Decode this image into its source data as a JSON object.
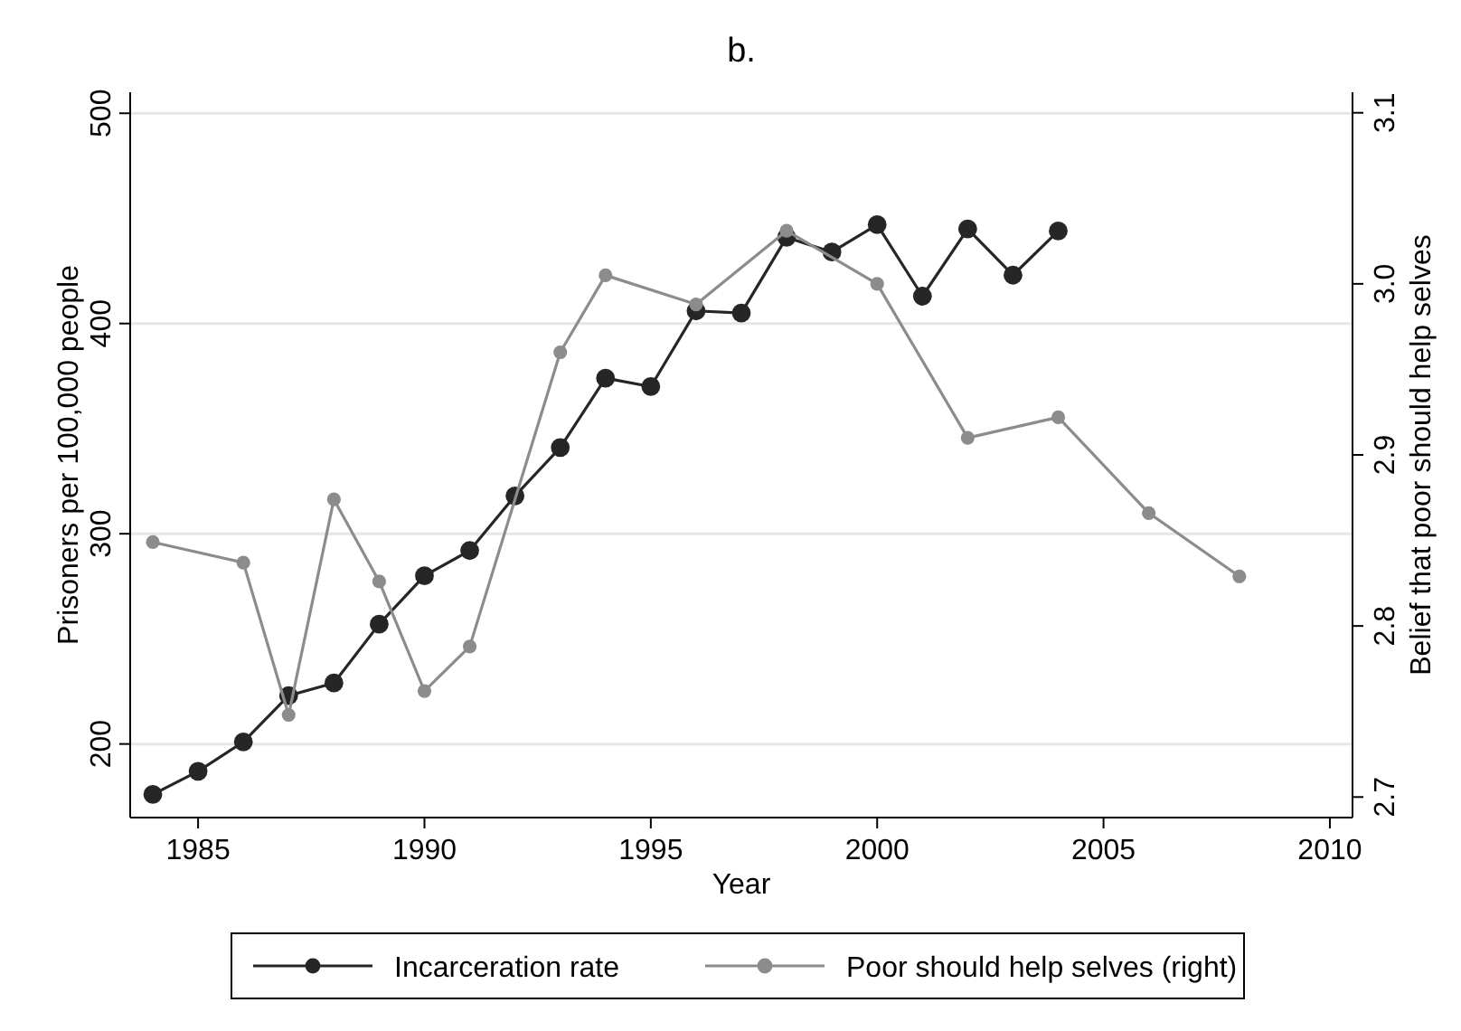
{
  "chart_data": {
    "type": "line",
    "title": "b.",
    "xlabel": "Year",
    "ylabel": "Prisoners per 100,000 people",
    "y2label": "Belief that poor should help selves",
    "xlim": [
      1983.5,
      2010.5
    ],
    "xticks": [
      1985,
      1990,
      1995,
      2000,
      2005,
      2010
    ],
    "ylim": [
      165,
      510
    ],
    "yticks": [
      200,
      300,
      400,
      500
    ],
    "y2lim": [
      2.688,
      3.112
    ],
    "y2ticks": [
      {
        "value": 2.7,
        "label": "2.7"
      },
      {
        "value": 2.8,
        "label": "2.8"
      },
      {
        "value": 2.9,
        "label": "2.9"
      },
      {
        "value": 3.0,
        "label": "3.0"
      },
      {
        "value": 3.1,
        "label": "3.1"
      }
    ],
    "grid": "y",
    "legend": "bottom",
    "marker": "circle",
    "line_style": "solid",
    "series": [
      {
        "name": "Incarceration rate",
        "color": "#262626",
        "x": [
          1984,
          1985,
          1986,
          1987,
          1988,
          1989,
          1990,
          1991,
          1992,
          1993,
          1994,
          1995,
          1996,
          1997,
          1998,
          1999,
          2000,
          2001,
          2002,
          2003,
          2004
        ],
        "values": [
          176,
          187,
          201,
          223,
          229,
          257,
          280,
          292,
          318,
          341,
          374,
          370,
          406,
          405,
          441,
          434,
          447,
          413,
          445,
          423,
          444
        ]
      },
      {
        "name": "Poor should help selves (right)",
        "color": "#8c8c8c",
        "axis": "y2",
        "x": [
          1984,
          1986,
          1987,
          1988,
          1989,
          1990,
          1991,
          1993,
          1994,
          1996,
          1998,
          2000,
          2002,
          2004,
          2006,
          2008
        ],
        "values": [
          2.849,
          2.837,
          2.748,
          2.874,
          2.826,
          2.762,
          2.788,
          2.96,
          3.005,
          2.988,
          3.031,
          3.0,
          2.91,
          2.922,
          2.866,
          2.829
        ]
      }
    ]
  }
}
